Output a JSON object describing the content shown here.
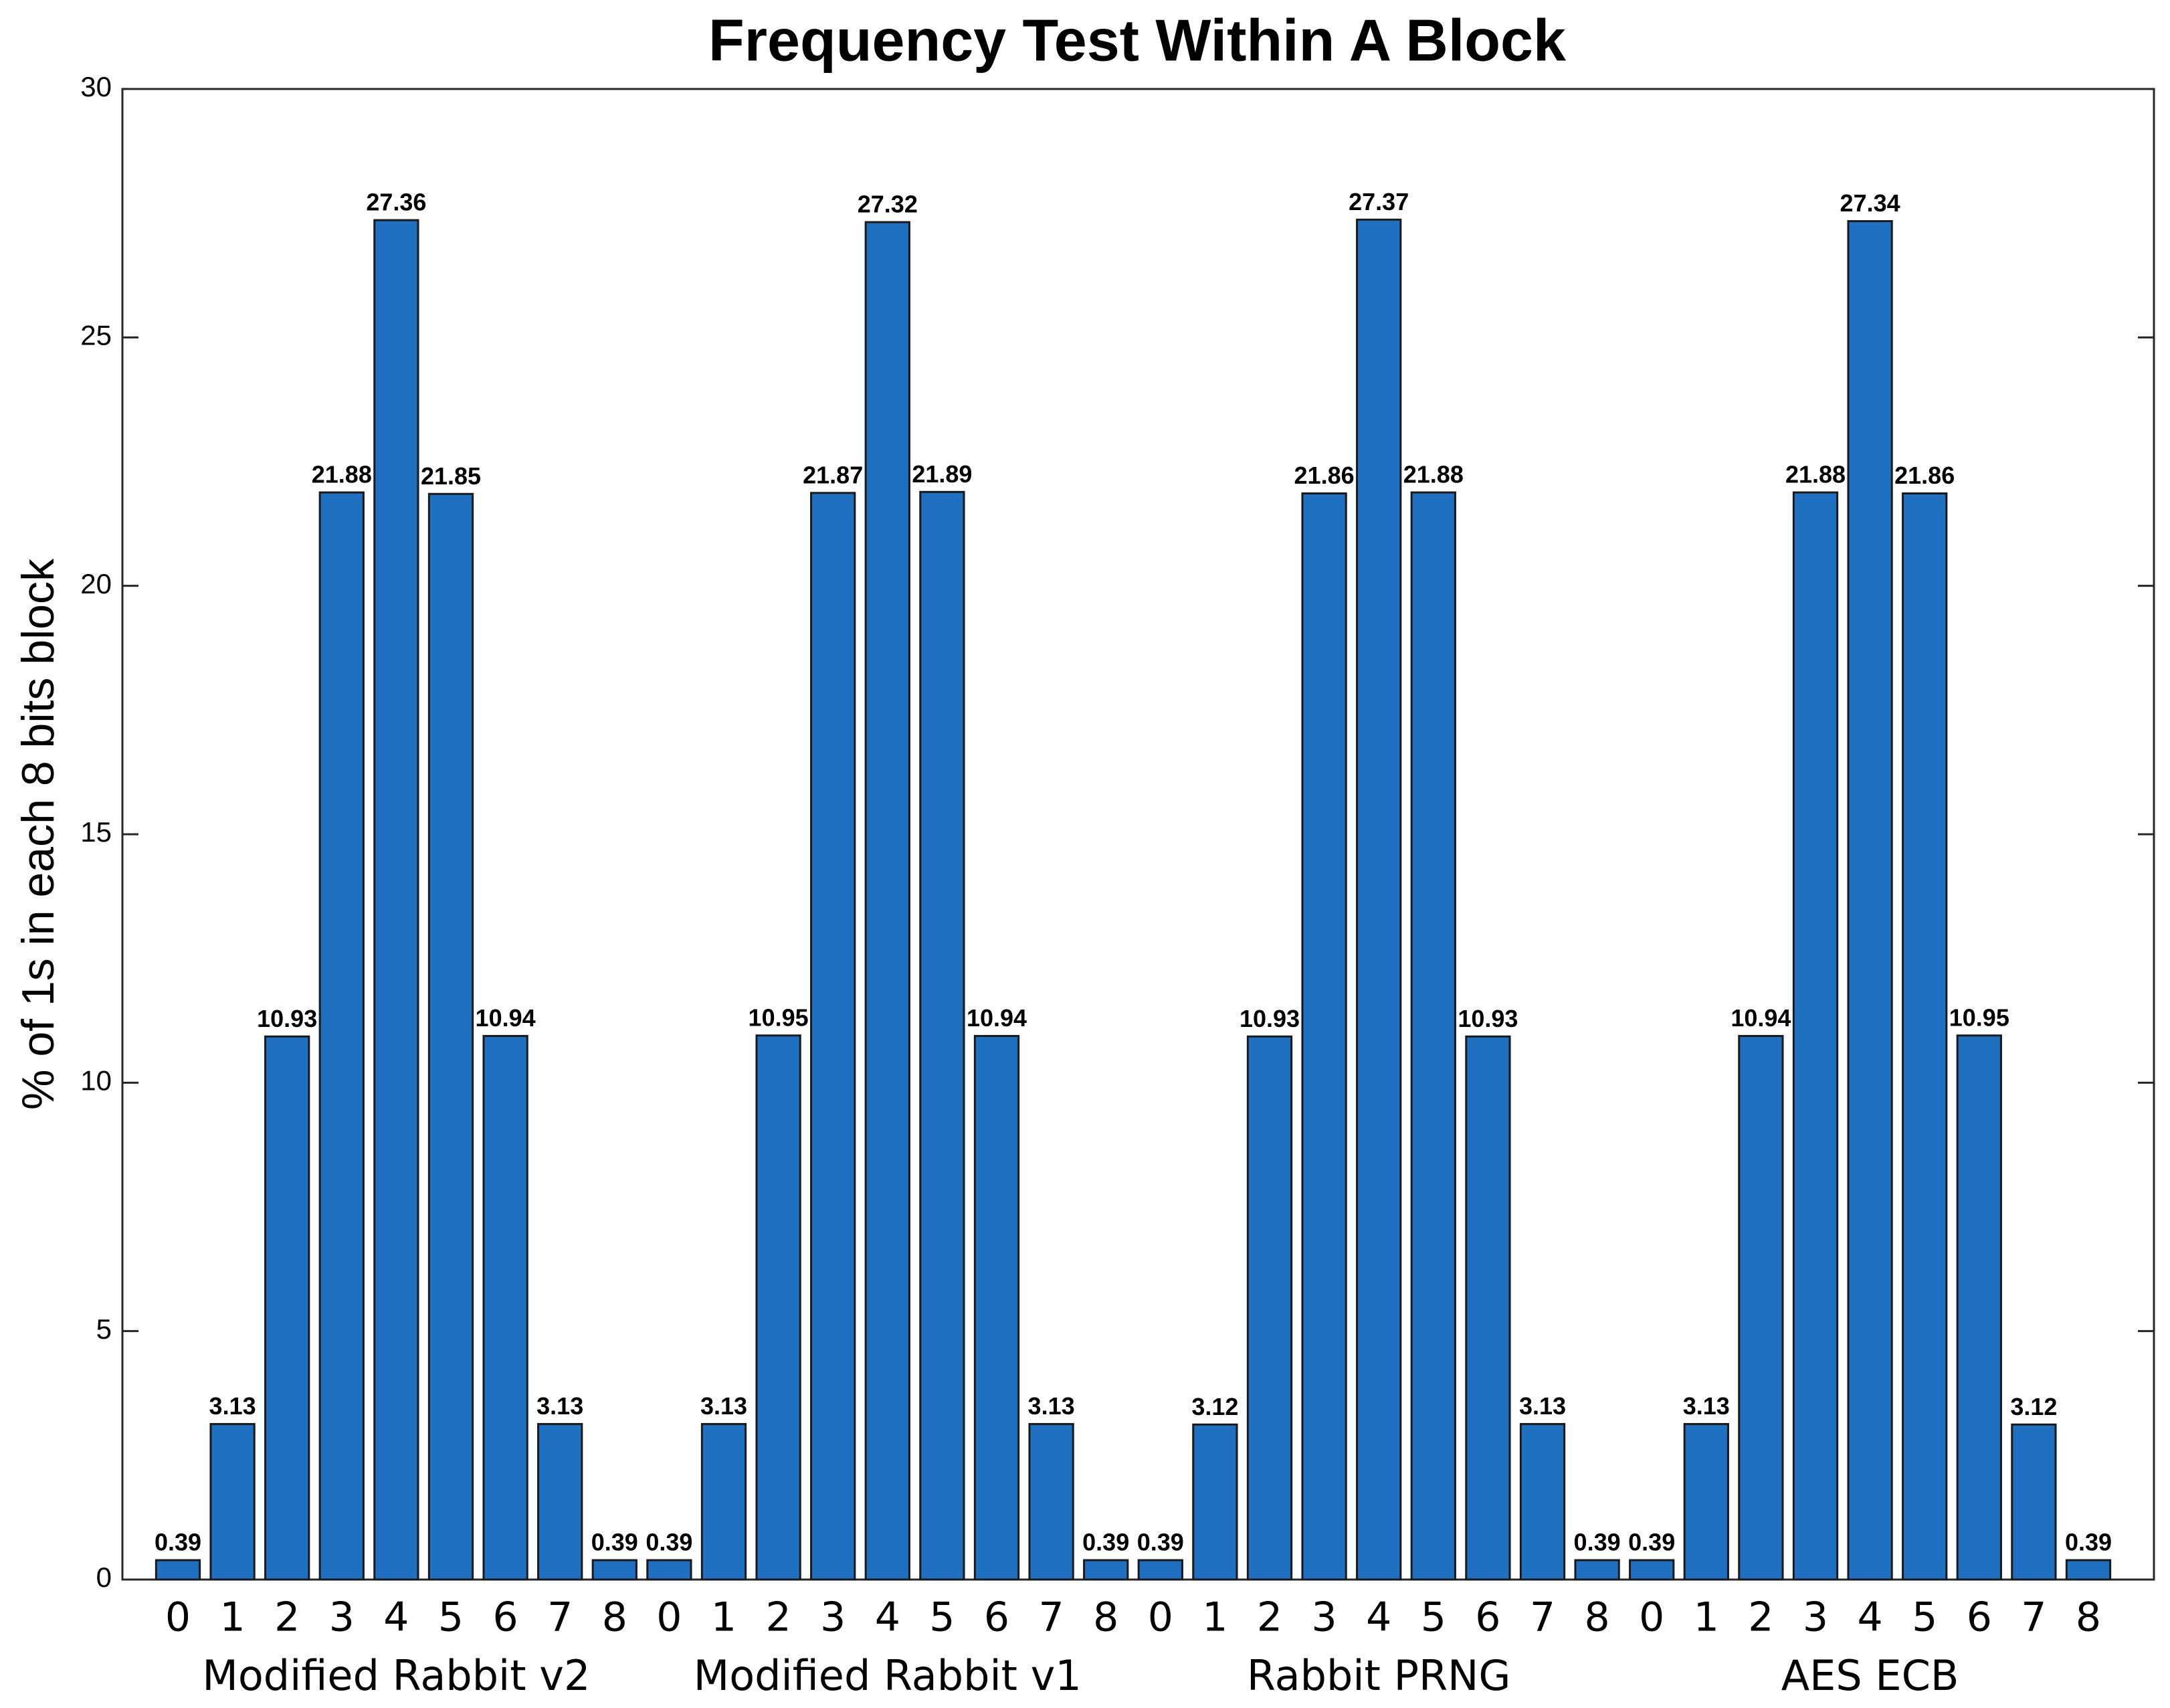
{
  "chart_data": {
    "type": "bar",
    "title": "Frequency Test Within A Block",
    "ylabel": "% of 1s in each 8 bits block",
    "categories": [
      "0",
      "1",
      "2",
      "3",
      "4",
      "5",
      "6",
      "7",
      "8",
      "0",
      "1",
      "2",
      "3",
      "4",
      "5",
      "6",
      "7",
      "8",
      "0",
      "1",
      "2",
      "3",
      "4",
      "5",
      "6",
      "7",
      "8",
      "0",
      "1",
      "2",
      "3",
      "4",
      "5",
      "6",
      "7",
      "8"
    ],
    "values": [
      0.39,
      3.13,
      10.93,
      21.88,
      27.36,
      21.85,
      10.94,
      3.13,
      0.39,
      0.39,
      3.13,
      10.95,
      21.87,
      27.32,
      21.89,
      10.94,
      3.13,
      0.39,
      0.39,
      3.12,
      10.93,
      21.86,
      27.37,
      21.88,
      10.93,
      3.13,
      0.39,
      0.39,
      3.13,
      10.94,
      21.88,
      27.34,
      21.86,
      10.95,
      3.12,
      0.39
    ],
    "groups": [
      "Modified Rabbit v2",
      "Modified Rabbit v1",
      "Rabbit PRNG",
      "AES ECB"
    ],
    "color": "#1f70c1",
    "ylim": [
      0,
      30
    ],
    "yticks": [
      0,
      5,
      10,
      15,
      20,
      25,
      30
    ]
  }
}
